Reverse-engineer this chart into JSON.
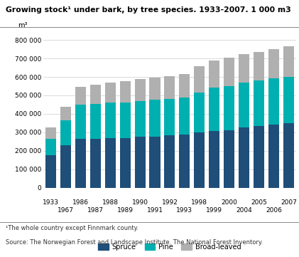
{
  "title": "Growing stock¹ under bark, by tree species. 1933-2007. 1 000 m3",
  "ylabel": "m³",
  "years": [
    "1933",
    "1967",
    "1986",
    "1987",
    "1988",
    "1989",
    "1990",
    "1991",
    "1992",
    "1993",
    "1998",
    "1999",
    "2000",
    "2004",
    "2005",
    "2006",
    "2007"
  ],
  "spruce": [
    175000,
    230000,
    265000,
    265000,
    270000,
    270000,
    275000,
    278000,
    282000,
    287000,
    300000,
    308000,
    312000,
    325000,
    333000,
    342000,
    350000
  ],
  "pine": [
    90000,
    135000,
    185000,
    188000,
    190000,
    192000,
    195000,
    198000,
    200000,
    203000,
    215000,
    233000,
    238000,
    245000,
    248000,
    250000,
    252000
  ],
  "broad_leaved": [
    60000,
    72000,
    98000,
    105000,
    108000,
    115000,
    118000,
    120000,
    122000,
    125000,
    145000,
    150000,
    155000,
    152000,
    155000,
    160000,
    163000
  ],
  "spruce_color": "#1f4e79",
  "pine_color": "#00b0b0",
  "broad_leaved_color": "#b0b0b0",
  "legend_labels": [
    "Spruce",
    "Pine",
    "Broad-leaved"
  ],
  "ylim": [
    0,
    850000
  ],
  "yticks": [
    0,
    100000,
    200000,
    300000,
    400000,
    500000,
    600000,
    700000,
    800000
  ],
  "ytick_labels": [
    "0",
    "100 000",
    "200 000",
    "300 000",
    "400 000",
    "500 000",
    "600 000",
    "700 000",
    "800 000"
  ],
  "footnote1": "¹The whole country except Finnmark county.",
  "footnote2": "Source: The Norwegian Forest and Landscape Institute. The National Forest Inventory.",
  "background_color": "#ffffff",
  "grid_color": "#cccccc",
  "top_row_indices": [
    0,
    2,
    4,
    6,
    8,
    10,
    12,
    14,
    16
  ],
  "bottom_row_indices": [
    1,
    3,
    5,
    7,
    9,
    11,
    13,
    15
  ]
}
